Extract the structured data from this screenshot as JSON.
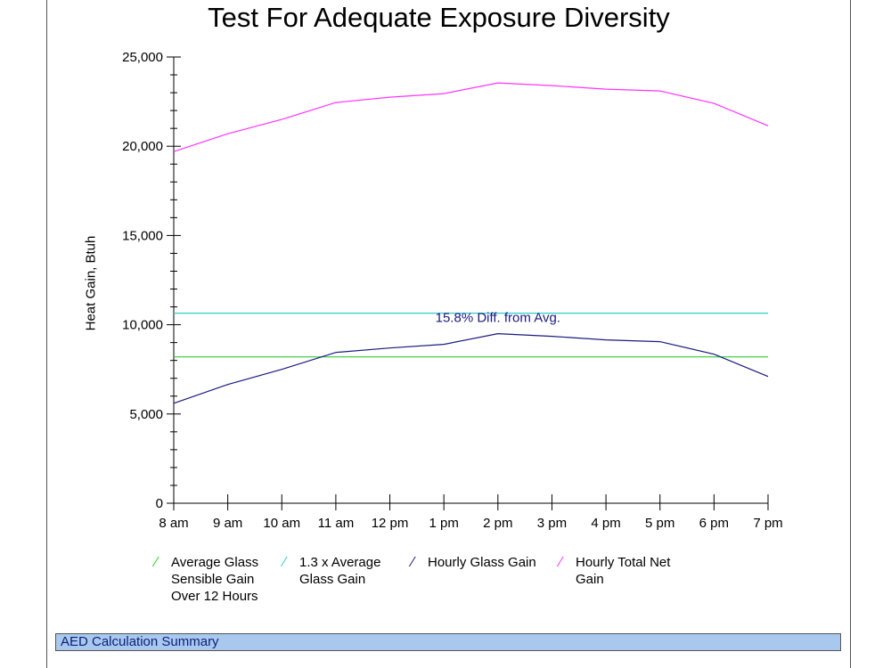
{
  "chart_data": {
    "type": "line",
    "title": "Test For Adequate Exposure Diversity",
    "xlabel": "",
    "ylabel": "Heat Gain, Btuh",
    "categories": [
      "8 am",
      "9 am",
      "10 am",
      "11 am",
      "12 pm",
      "1 pm",
      "2 pm",
      "3 pm",
      "4 pm",
      "5 pm",
      "6 pm",
      "7 pm"
    ],
    "ylim": [
      0,
      25000
    ],
    "yticks": [
      0,
      5000,
      10000,
      15000,
      20000,
      25000
    ],
    "ytick_labels": [
      "0",
      "5,000",
      "10,000",
      "15,000",
      "20,000",
      "25,000"
    ],
    "series": [
      {
        "name": "Average Glass Sensible Gain Over 12 Hours",
        "color": "#33cc33",
        "values": [
          8200,
          8200,
          8200,
          8200,
          8200,
          8200,
          8200,
          8200,
          8200,
          8200,
          8200,
          8200
        ]
      },
      {
        "name": "1.3 x Average Glass Gain",
        "color": "#33cccc",
        "values": [
          10650,
          10650,
          10650,
          10650,
          10650,
          10650,
          10650,
          10650,
          10650,
          10650,
          10650,
          10650
        ]
      },
      {
        "name": "Hourly Glass Gain",
        "color": "#1a1a80",
        "values": [
          5600,
          6650,
          7500,
          8450,
          8700,
          8900,
          9500,
          9350,
          9150,
          9050,
          8350,
          7100
        ]
      },
      {
        "name": "Hourly Total Net Gain",
        "color": "#ff33ff",
        "values": [
          19700,
          20700,
          21500,
          22450,
          22750,
          22950,
          23550,
          23400,
          23200,
          23100,
          22400,
          21150
        ]
      }
    ],
    "annotations": [
      {
        "text": "15.8% Diff. from Avg.",
        "x": "2 pm",
        "y": 10650,
        "color": "#1a1a80"
      }
    ],
    "legend_position": "bottom",
    "grid": false
  },
  "legend": [
    {
      "text": "Average Glass\nSensible Gain\nOver 12 Hours",
      "color": "#33cc33"
    },
    {
      "text": "1.3 x Average\nGlass Gain",
      "color": "#33cccc"
    },
    {
      "text": "Hourly Glass Gain",
      "color": "#1a1a80"
    },
    {
      "text": "Hourly Total Net\nGain",
      "color": "#ff33ff"
    }
  ],
  "summary": {
    "label": "AED Calculation Summary"
  }
}
